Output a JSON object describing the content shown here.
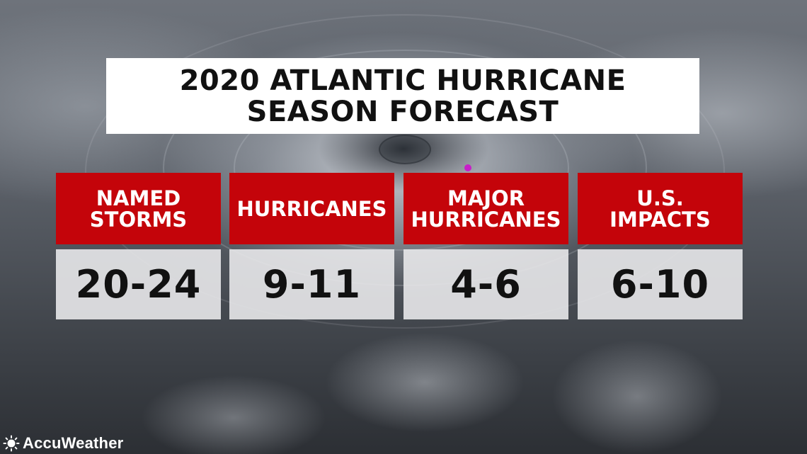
{
  "title": {
    "line1": "2020 ATLANTIC HURRICANE",
    "line2": "SEASON FORECAST"
  },
  "categories": [
    {
      "label_lines": [
        "NAMED",
        "STORMS"
      ],
      "value": "20-24"
    },
    {
      "label_lines": [
        "HURRICANES"
      ],
      "value": "9-11"
    },
    {
      "label_lines": [
        "MAJOR",
        "HURRICANES"
      ],
      "value": "4-6"
    },
    {
      "label_lines": [
        "U.S.",
        "IMPACTS"
      ],
      "value": "6-10"
    }
  ],
  "brand": {
    "name": "AccuWeather",
    "icon": "sun-icon"
  },
  "colors": {
    "header_red": "#c4040a",
    "title_bg": "#ffffff",
    "value_bg": "#e8e8ea",
    "marker": "#c81ec8"
  }
}
